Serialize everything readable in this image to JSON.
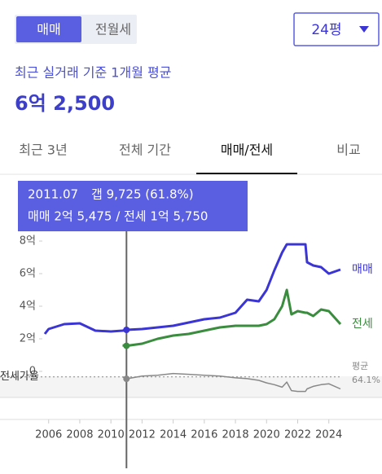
{
  "toggle": {
    "options": [
      "매매",
      "전월세"
    ]
  },
  "size_select": "24평",
  "subtitle": "최근 실거래 기준 1개월 평균",
  "price": "6억 2,500",
  "tabs": [
    "최근 3년",
    "전체 기간",
    "매매/전세",
    "비교"
  ],
  "tooltip": {
    "date": "2011.07",
    "gap": "갭 9,725 (61.8%)",
    "detail": "매매 2억 5,475 / 전세 1억 5,750"
  },
  "chart_data": {
    "type": "line",
    "x": [
      2005.75,
      2006,
      2007,
      2008,
      2009,
      2010,
      2010.75,
      2011,
      2012,
      2013,
      2014,
      2015,
      2016,
      2017,
      2018,
      2018.75,
      2019.5,
      2020,
      2020.5,
      2021,
      2021.3,
      2021.6,
      2022,
      2022.5,
      2022.6,
      2023,
      2023.5,
      2024,
      2024.75
    ],
    "xlim": [
      2005.7,
      2024.8
    ],
    "xticks": [
      2006,
      2008,
      2010,
      2012,
      2014,
      2016,
      2018,
      2020,
      2022,
      2024
    ],
    "ylim": [
      0,
      8.6
    ],
    "yticks": [
      0,
      {
        "value": 2,
        "label": "2억"
      },
      {
        "value": 4,
        "label": "4억"
      },
      {
        "value": 6,
        "label": "6억"
      },
      {
        "value": 8,
        "label": "8억"
      }
    ],
    "y2lim": [
      40,
      80
    ],
    "grid": false,
    "series": [
      {
        "name": "매매",
        "color": "#3b35d4",
        "values": [
          2.3,
          2.6,
          2.9,
          2.95,
          2.5,
          2.45,
          2.5,
          2.55,
          2.6,
          2.7,
          2.8,
          3.0,
          3.2,
          3.3,
          3.6,
          4.4,
          4.3,
          5.0,
          6.2,
          7.3,
          7.8,
          7.8,
          7.8,
          7.8,
          6.7,
          6.5,
          6.4,
          6.0,
          6.25
        ]
      },
      {
        "name": "전세",
        "color": "#3a8c3e",
        "values": [
          null,
          null,
          null,
          null,
          null,
          null,
          1.6,
          1.57,
          1.7,
          2.0,
          2.2,
          2.3,
          2.5,
          2.7,
          2.8,
          2.8,
          2.8,
          2.9,
          3.2,
          4.0,
          5.0,
          3.5,
          3.7,
          3.6,
          3.6,
          3.4,
          3.8,
          3.7,
          2.9
        ]
      },
      {
        "name": "전세가율",
        "color": "#888888",
        "axis": "y2",
        "values": [
          null,
          null,
          null,
          null,
          null,
          null,
          64,
          61.8,
          65,
          66,
          68,
          67,
          66,
          65,
          63,
          62,
          60,
          57,
          55,
          52,
          58,
          48,
          47,
          47,
          50,
          53,
          55,
          56,
          50
        ]
      }
    ],
    "ratio_average_title": "평균",
    "ratio_average": {
      "value": 64.1,
      "label": "64.1%"
    }
  }
}
